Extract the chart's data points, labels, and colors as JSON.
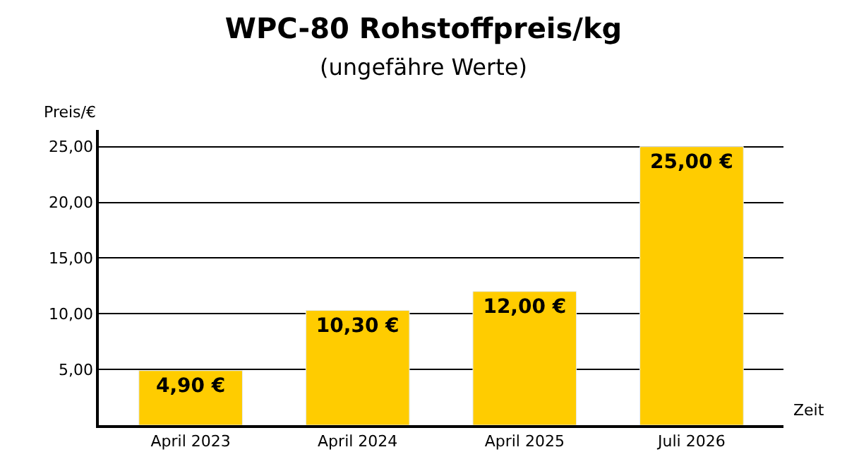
{
  "chart_data": {
    "type": "bar",
    "title": "WPC-80 Rohstoffpreis/kg",
    "subtitle": "(ungefähre Werte)",
    "xlabel": "Zeit",
    "ylabel": "Preis/€",
    "categories": [
      "April 2023",
      "April 2024",
      "April 2025",
      "Juli 2026"
    ],
    "values": [
      4.9,
      10.3,
      12.0,
      25.0
    ],
    "value_labels": [
      "4,90 €",
      "10,30 €",
      "12,00 €",
      "25,00 €"
    ],
    "color": "#ffcc00",
    "ylim": [
      0,
      26.5
    ],
    "yticks": [
      {
        "value": 5,
        "label": "5,00"
      },
      {
        "value": 10,
        "label": "10,00"
      },
      {
        "value": 15,
        "label": "15,00"
      },
      {
        "value": 20,
        "label": "20,00"
      },
      {
        "value": 25,
        "label": "25,00"
      }
    ],
    "grid": "y",
    "legend": false
  }
}
